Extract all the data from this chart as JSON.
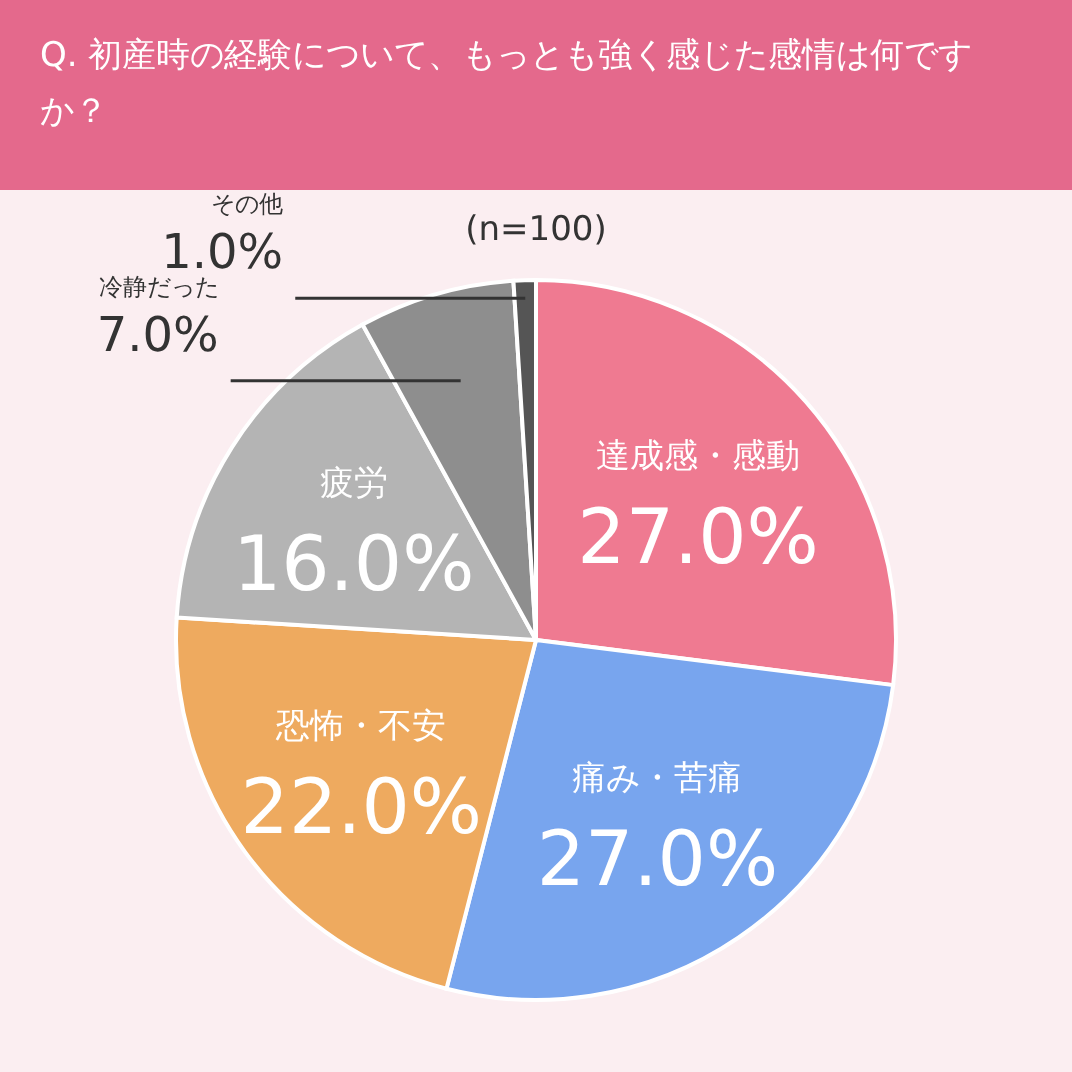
{
  "chart_data": {
    "type": "pie",
    "title": "Q. 初産時の経験について、もっとも強く感じた感情は何ですか？",
    "categories": [
      "達成感・感動",
      "痛み・苦痛",
      "恐怖・不安",
      "疲労",
      "冷静だった",
      "その他"
    ],
    "values": [
      27,
      27,
      22,
      16,
      7,
      1
    ],
    "colors": [
      "#ef7a91",
      "#78a5ee",
      "#eeaa5f",
      "#b4b4b4",
      "#8e8e8e",
      "#555555"
    ],
    "value_labels": [
      "27.0%",
      "27.0%",
      "22.0%",
      "16.0%",
      "7.0%",
      "1.0%"
    ],
    "annotations": [
      "(n=100)"
    ]
  }
}
